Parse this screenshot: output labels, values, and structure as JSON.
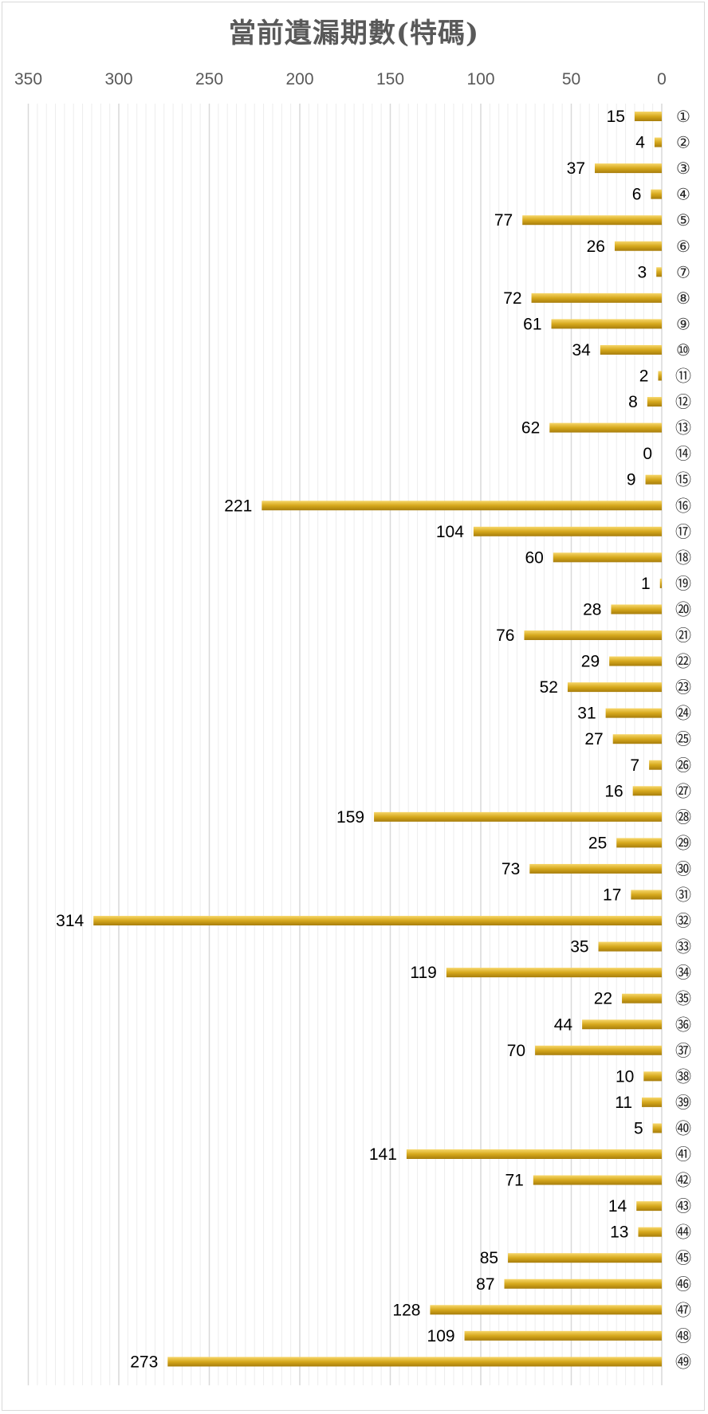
{
  "colors": {
    "bar_top": "#f7d76b",
    "bar_mid": "#d6a81c",
    "bar_bottom": "#a77d0c",
    "major_grid": "#d9d9d9",
    "minor_grid": "#ededed",
    "text": "#595959"
  },
  "chart_data": {
    "type": "bar",
    "orientation": "horizontal",
    "title": "當前遺漏期數(特碼)",
    "xlabel": "",
    "ylabel": "",
    "x_axis_reversed": true,
    "x_axis_position": "top",
    "xlim": [
      0,
      350
    ],
    "x_ticks": [
      350,
      300,
      250,
      200,
      150,
      100,
      50,
      0
    ],
    "grid": true,
    "legend": "none",
    "categories": [
      "①",
      "②",
      "③",
      "④",
      "⑤",
      "⑥",
      "⑦",
      "⑧",
      "⑨",
      "⑩",
      "⑪",
      "⑫",
      "⑬",
      "⑭",
      "⑮",
      "⑯",
      "⑰",
      "⑱",
      "⑲",
      "⑳",
      "㉑",
      "㉒",
      "㉓",
      "㉔",
      "㉕",
      "㉖",
      "㉗",
      "㉘",
      "㉙",
      "㉚",
      "㉛",
      "㉜",
      "㉝",
      "㉞",
      "㉟",
      "㊱",
      "㊲",
      "㊳",
      "㊴",
      "㊵",
      "㊶",
      "㊷",
      "㊸",
      "㊹",
      "㊺",
      "㊻",
      "㊼",
      "㊽",
      "㊾"
    ],
    "values": [
      15,
      4,
      37,
      6,
      77,
      26,
      3,
      72,
      61,
      34,
      2,
      8,
      62,
      0,
      9,
      221,
      104,
      60,
      1,
      28,
      76,
      29,
      52,
      31,
      27,
      7,
      16,
      159,
      25,
      73,
      17,
      314,
      35,
      119,
      22,
      44,
      70,
      10,
      11,
      5,
      141,
      71,
      14,
      13,
      85,
      87,
      128,
      109,
      273
    ]
  }
}
